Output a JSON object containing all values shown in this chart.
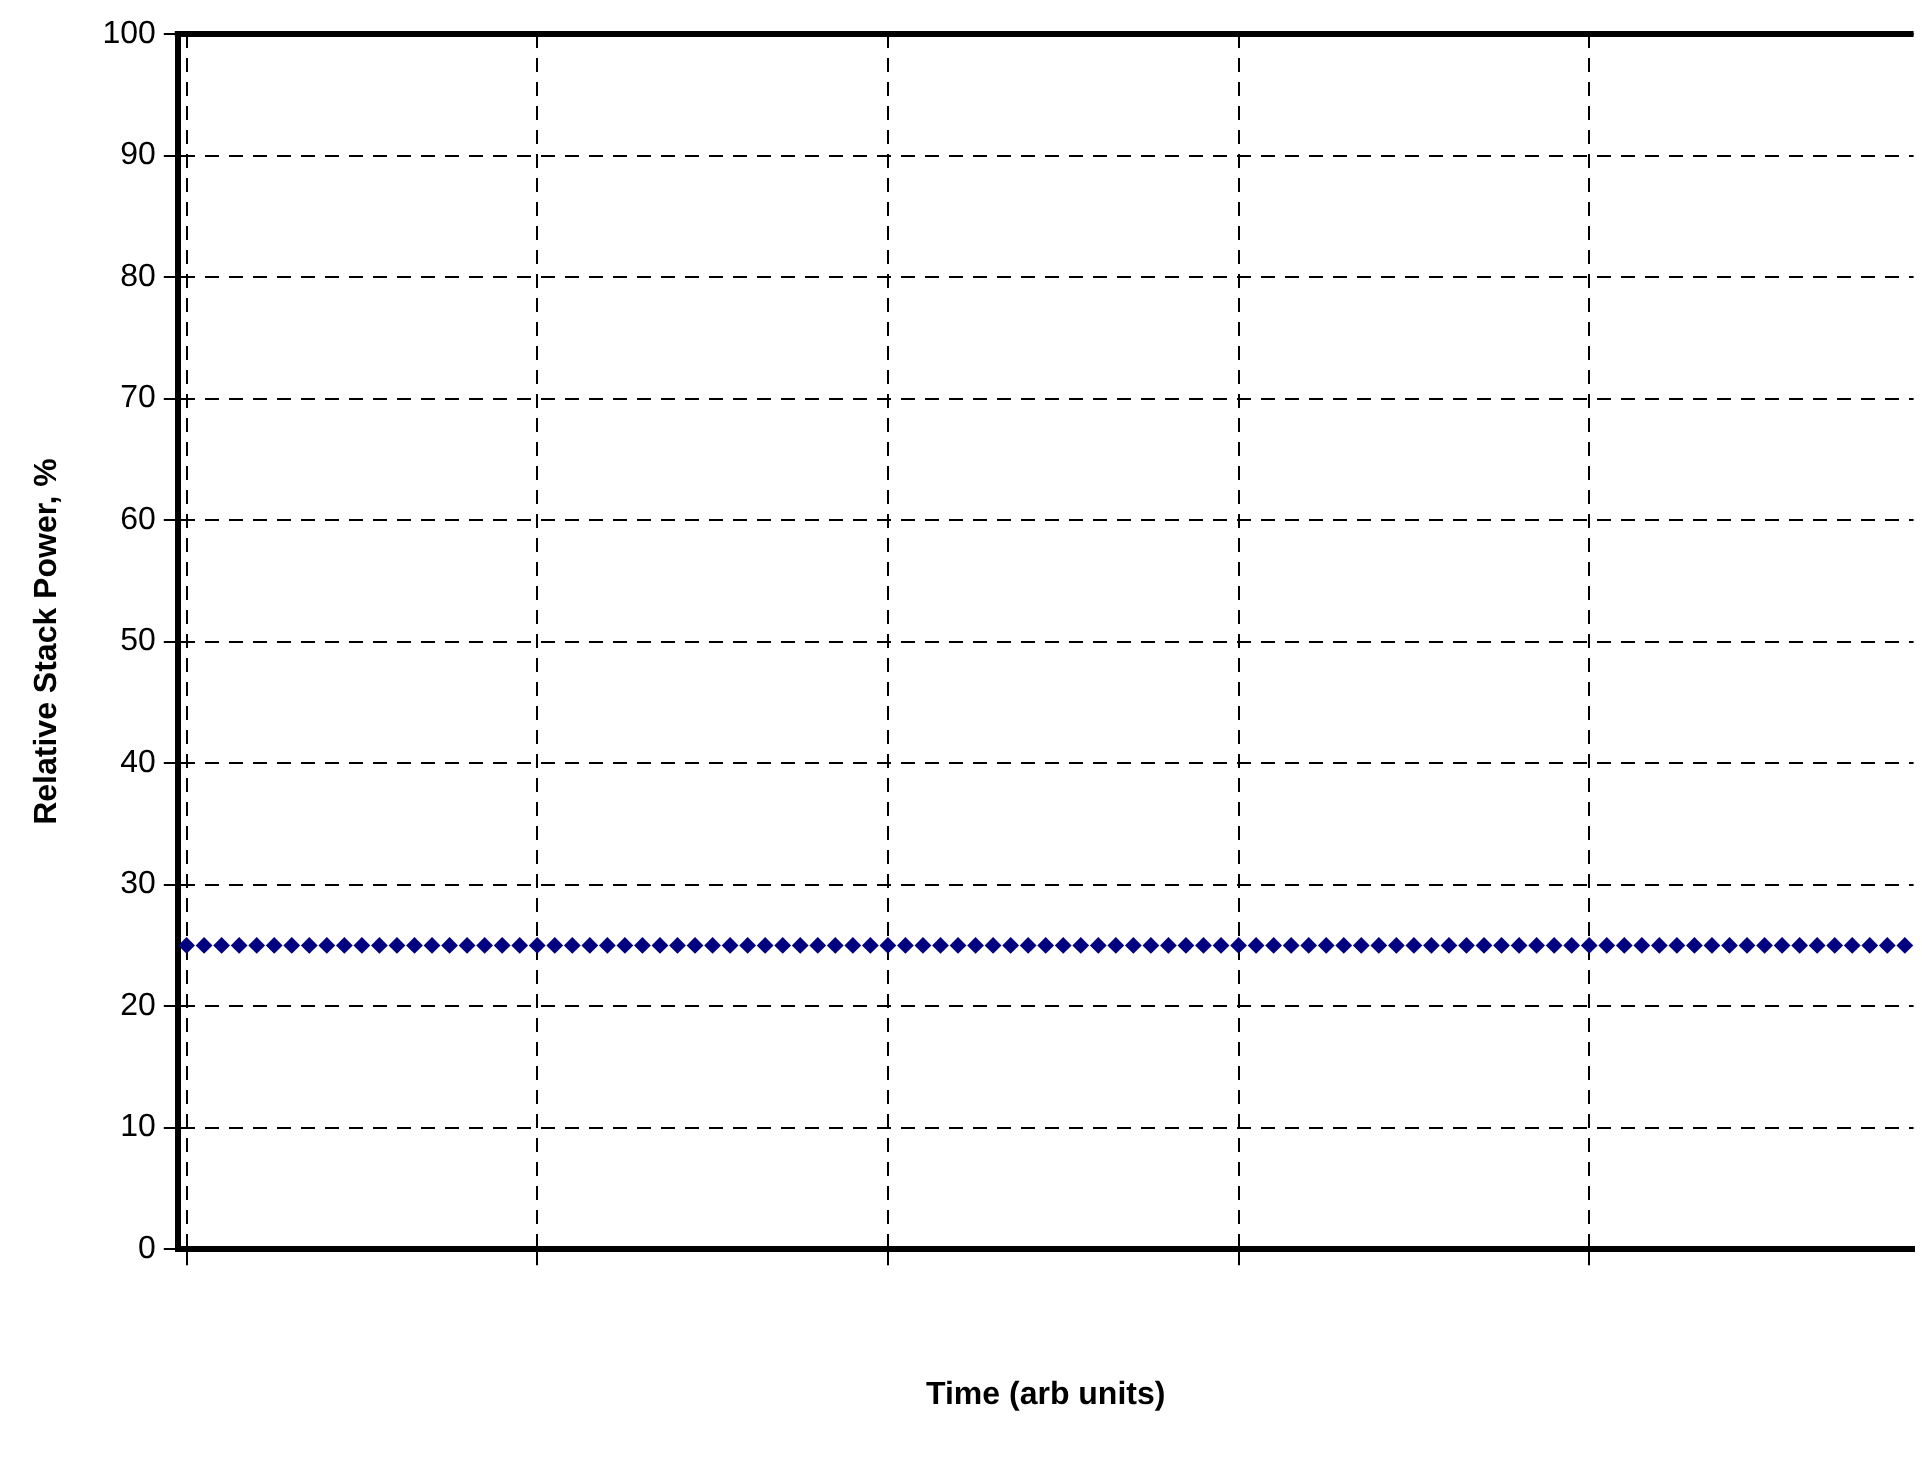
{
  "chart_data": {
    "type": "scatter",
    "xlabel": "Time (arb units)",
    "ylabel": "Relative Stack Power, %",
    "categories": [
      null,
      null,
      null,
      null,
      null,
      null,
      null,
      null,
      null,
      null,
      null,
      null,
      null,
      null,
      null,
      null,
      null,
      null,
      null,
      null,
      null,
      null,
      null,
      null,
      null,
      null,
      null,
      null,
      null,
      null,
      null,
      null,
      null,
      null,
      null,
      null,
      null,
      null,
      null,
      null,
      null,
      null,
      null,
      null,
      null,
      null,
      null,
      null,
      null,
      null,
      null,
      null,
      null,
      null,
      null,
      null,
      null,
      null,
      null,
      null,
      null,
      null,
      null,
      null,
      null,
      null,
      null,
      null,
      null,
      null,
      null,
      null,
      null,
      null,
      null,
      null,
      null,
      null,
      null,
      null,
      null,
      null,
      null,
      null,
      null,
      null,
      null,
      null,
      null,
      null,
      null,
      null,
      null,
      null,
      null,
      null,
      null,
      null,
      null
    ],
    "series": [
      {
        "color": "#000080",
        "values": [
          25,
          25,
          25,
          25,
          25,
          25,
          25,
          25,
          25,
          25,
          25,
          25,
          25,
          25,
          25,
          25,
          25,
          25,
          25,
          25,
          25,
          25,
          25,
          25,
          25,
          25,
          25,
          25,
          25,
          25,
          25,
          25,
          25,
          25,
          25,
          25,
          25,
          25,
          25,
          25,
          25,
          25,
          25,
          25,
          25,
          25,
          25,
          25,
          25,
          25,
          25,
          25,
          25,
          25,
          25,
          25,
          25,
          25,
          25,
          25,
          25,
          25,
          25,
          25,
          25,
          25,
          25,
          25,
          25,
          25,
          25,
          25,
          25,
          25,
          25,
          25,
          25,
          25,
          25,
          25,
          25,
          25,
          25,
          25,
          25,
          25,
          25,
          25,
          25,
          25,
          25,
          25,
          25,
          25,
          25,
          25,
          25,
          25,
          25
        ]
      }
    ],
    "ylim": [
      0,
      100
    ],
    "yticks": [
      0,
      10,
      20,
      30,
      40,
      50,
      60,
      70,
      80,
      90,
      100
    ],
    "tick_labels": "y",
    "grid": true,
    "legend": false,
    "marker": "diamond"
  }
}
